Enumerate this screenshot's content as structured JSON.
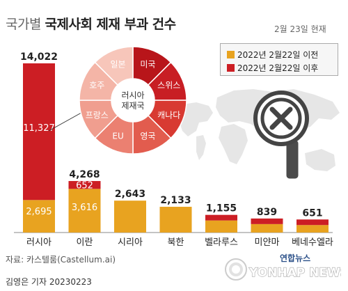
{
  "header": {
    "title_prefix": "국가별",
    "title_main": "국제사회 제재 부과 건수",
    "date_note": "2월 23일 현재"
  },
  "legend": {
    "before_label": "2022년 2월22일 이전",
    "after_label": "2022년 2월22일 이후"
  },
  "footer": {
    "source": "자료: 카스텔룸(Castellum.ai)",
    "reporter": "김영은 기자  20230223",
    "logo_korean": "연합뉴스",
    "logo_english": "YONHAP NEWS"
  },
  "colors": {
    "before": "#E8A320",
    "after": "#CC1E24",
    "donut_center_text": "#333333"
  },
  "chart_data": [
    {
      "type": "bar",
      "stacked": true,
      "categories": [
        "러시아",
        "이란",
        "시리아",
        "북한",
        "벨라루스",
        "미얀마",
        "베네수엘라"
      ],
      "series": [
        {
          "name": "2022년 2월22일 이전",
          "values": [
            2695,
            3616,
            2643,
            2133,
            1000,
            700,
            620
          ]
        },
        {
          "name": "2022년 2월22일 이후",
          "values": [
            11327,
            652,
            0,
            0,
            155,
            139,
            31
          ]
        }
      ],
      "totals": [
        14022,
        4268,
        2643,
        2133,
        1155,
        839,
        651
      ],
      "total_labels": [
        "14,022",
        "4,268",
        "2,643",
        "2,133",
        "1,155",
        "839",
        "651"
      ],
      "inner_labels": {
        "before": [
          "2,695",
          "3,616",
          "",
          "",
          "",
          "",
          ""
        ],
        "after": [
          "11,327",
          "652",
          "",
          "",
          "",
          "",
          ""
        ]
      },
      "grid": false,
      "legend_position": "top-right"
    },
    {
      "type": "pie",
      "center_label_lines": [
        "러시아",
        "제재국"
      ],
      "slices": [
        "미국",
        "스위스",
        "캐나다",
        "영국",
        "EU",
        "프랑스",
        "호주",
        "일본"
      ],
      "slice_colors": [
        "#B8151A",
        "#C81E24",
        "#D83A32",
        "#E25C4E",
        "#EB8071",
        "#F09E8F",
        "#F4B5A7",
        "#F7C6BA"
      ]
    }
  ]
}
